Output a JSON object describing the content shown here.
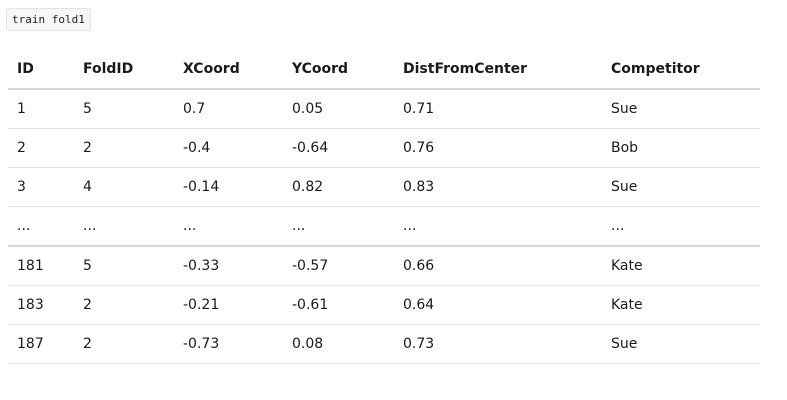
{
  "label": "train fold1",
  "table": {
    "headers": [
      "ID",
      "FoldID",
      "XCoord",
      "YCoord",
      "DistFromCenter",
      "Competitor"
    ],
    "rows": [
      [
        "1",
        "5",
        "0.7",
        "0.05",
        "0.71",
        "Sue"
      ],
      [
        "2",
        "2",
        "-0.4",
        "-0.64",
        "0.76",
        "Bob"
      ],
      [
        "3",
        "4",
        "-0.14",
        "0.82",
        "0.83",
        "Sue"
      ],
      [
        "...",
        "...",
        "...",
        "...",
        "...",
        "..."
      ],
      [
        "181",
        "5",
        "-0.33",
        "-0.57",
        "0.66",
        "Kate"
      ],
      [
        "183",
        "2",
        "-0.21",
        "-0.61",
        "0.64",
        "Kate"
      ],
      [
        "187",
        "2",
        "-0.73",
        "0.08",
        "0.73",
        "Sue"
      ]
    ]
  }
}
